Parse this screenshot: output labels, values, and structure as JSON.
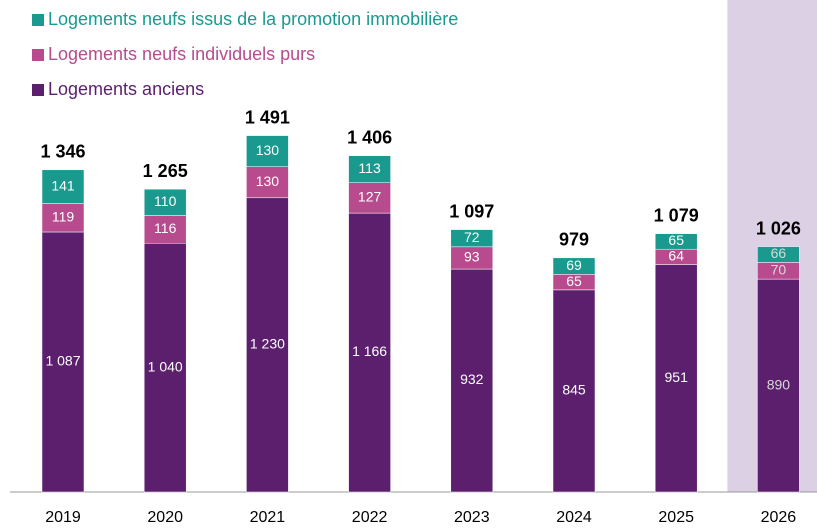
{
  "chart_data": {
    "type": "stacked_bar",
    "categories": [
      "2019",
      "2020",
      "2021",
      "2022",
      "2023",
      "2024",
      "2025",
      "2026"
    ],
    "series": [
      {
        "name": "Logements anciens",
        "color": "#5b1f6e",
        "values": [
          1087,
          1040,
          1230,
          1166,
          932,
          845,
          951,
          890
        ],
        "value_labels": [
          "1 087",
          "1 040",
          "1 230",
          "1 166",
          "932",
          "845",
          "951",
          "890"
        ]
      },
      {
        "name": "Logements neufs individuels purs",
        "color": "#b84b8e",
        "values": [
          119,
          116,
          130,
          127,
          93,
          65,
          64,
          70
        ]
      },
      {
        "name": "Logements neufs issus de la promotion immobilière",
        "color": "#1a9a8e",
        "values": [
          141,
          110,
          130,
          113,
          72,
          69,
          65,
          66
        ]
      }
    ],
    "totals": [
      1346,
      1265,
      1491,
      1406,
      1097,
      979,
      1079,
      1026
    ],
    "total_labels": [
      "1 346",
      "1 265",
      "1 491",
      "1 406",
      "1 097",
      "979",
      "1 079",
      "1 026"
    ],
    "legend": "top-left"
  }
}
